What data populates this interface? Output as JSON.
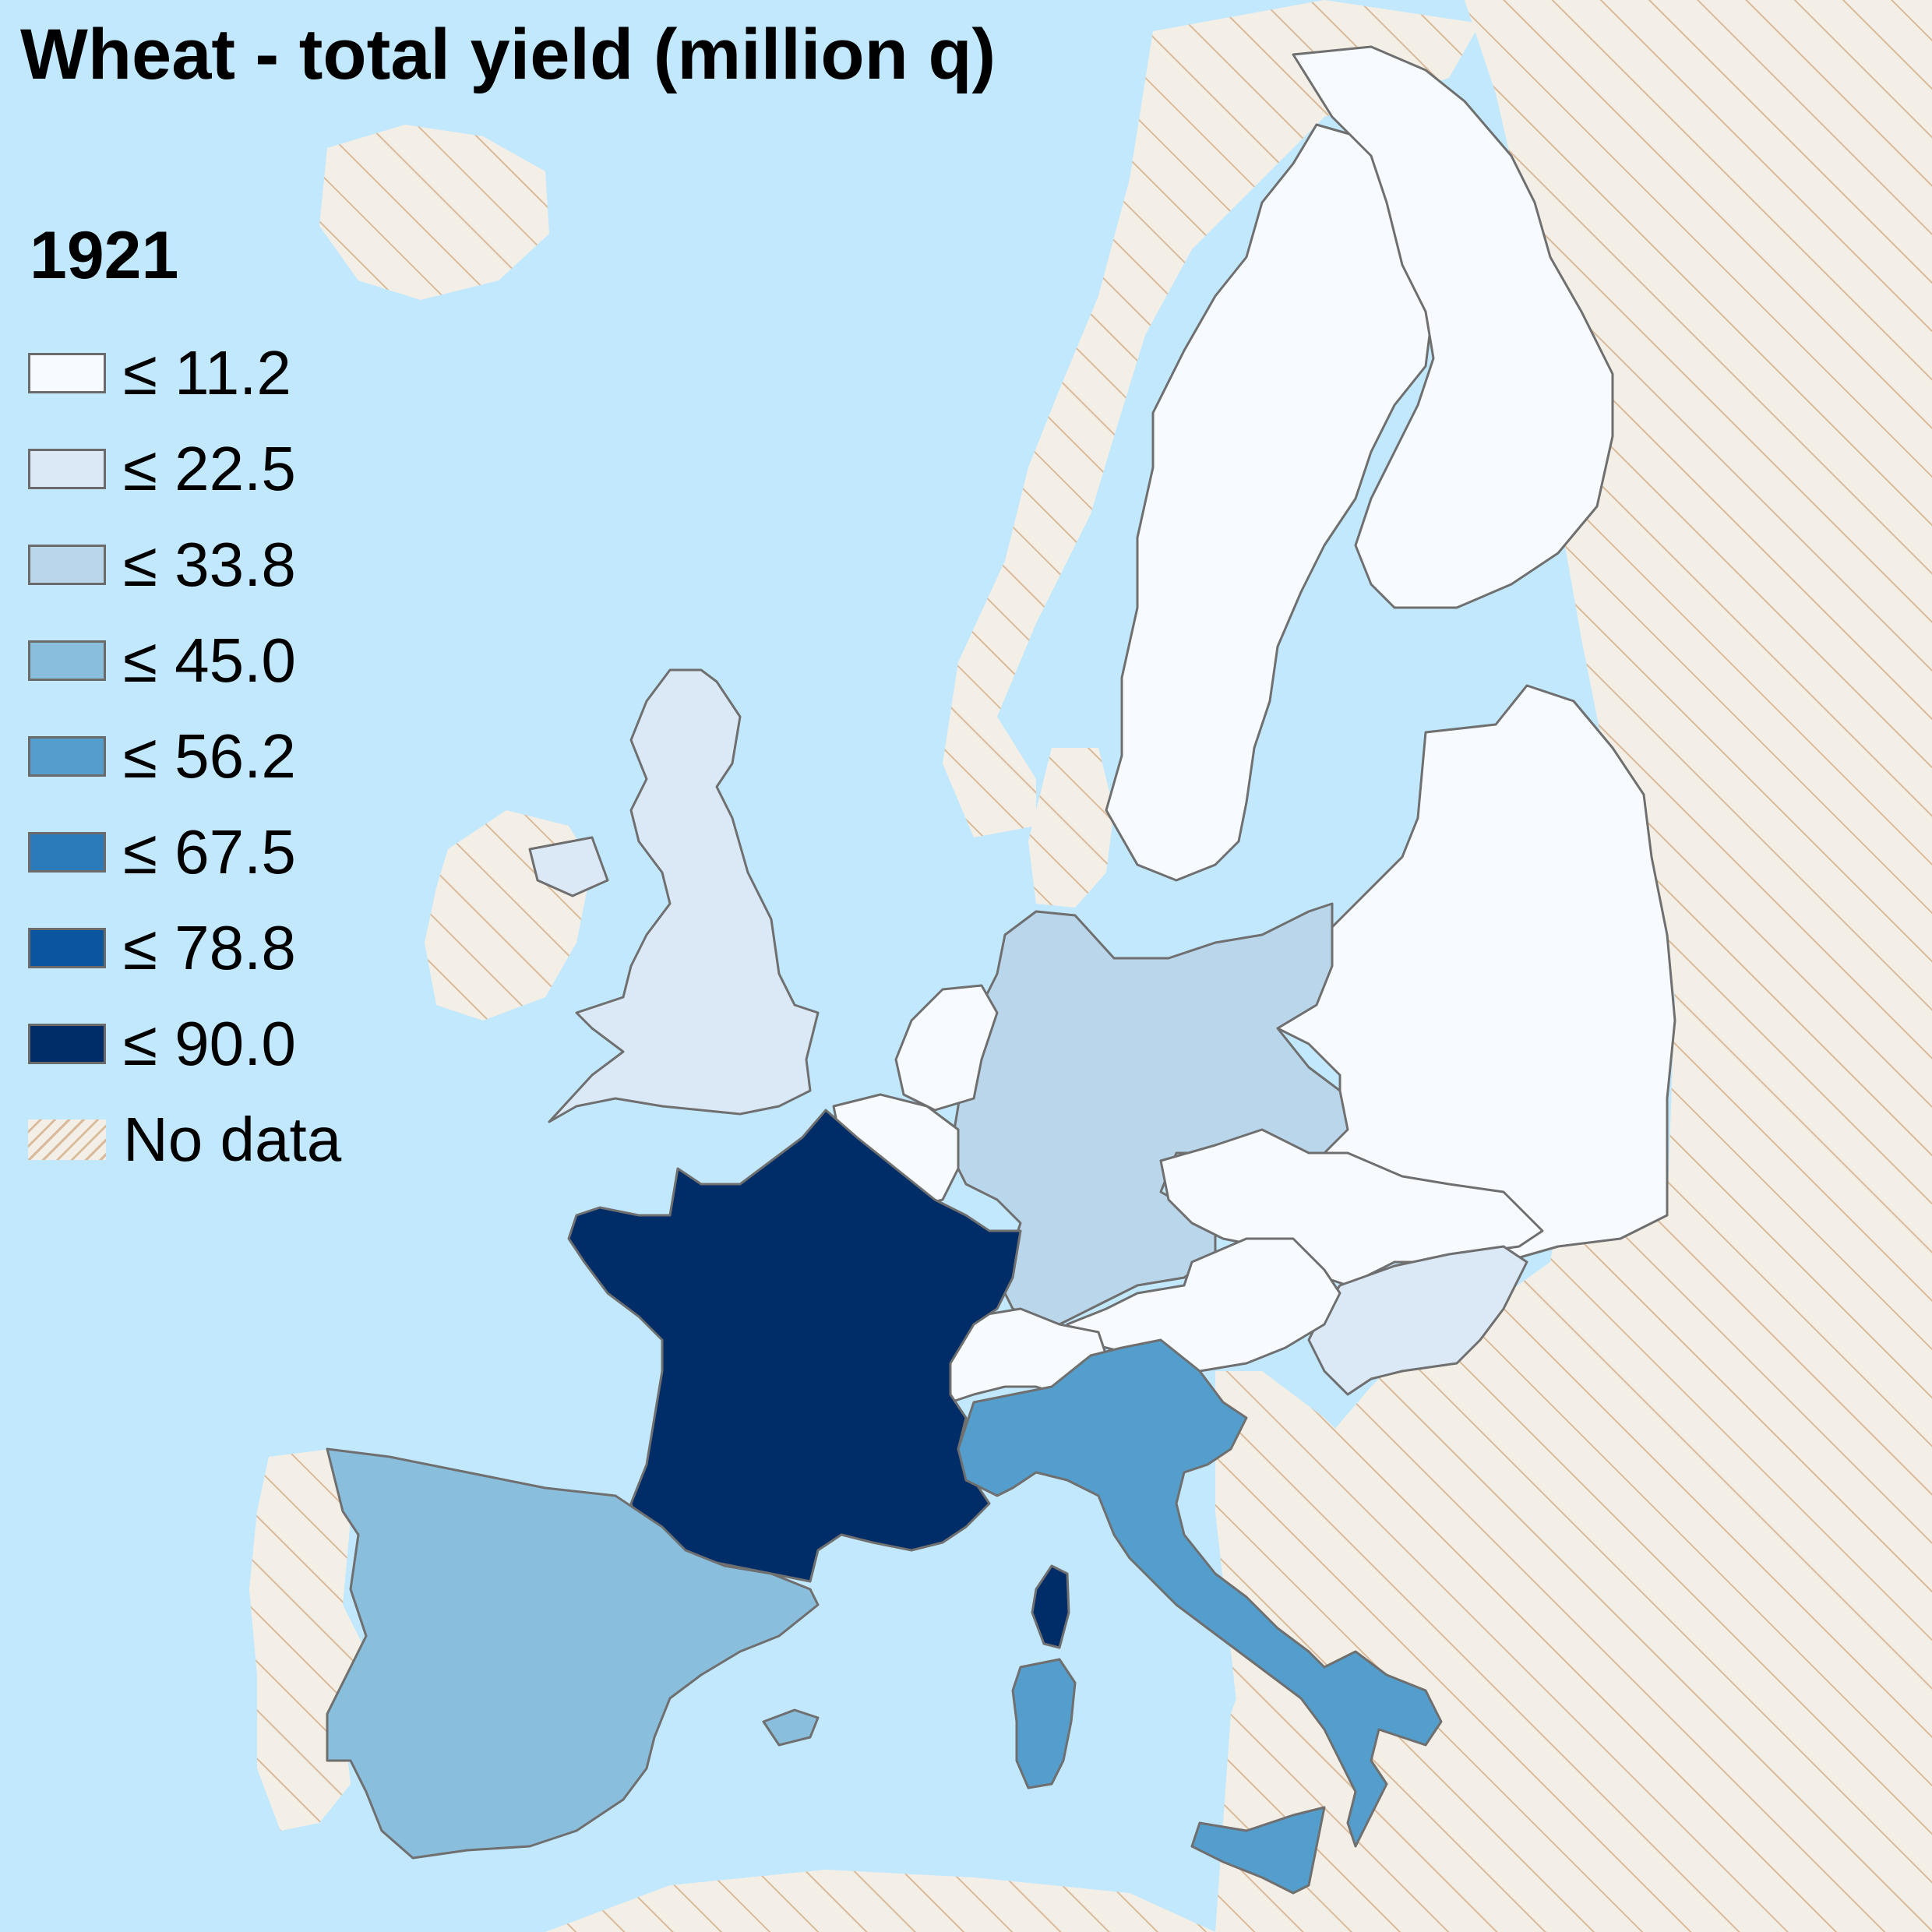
{
  "title": "Wheat - total yield (million q)",
  "legend": {
    "year": "1921",
    "items": [
      {
        "label": "≤ 11.2",
        "color": "#f7fbff"
      },
      {
        "label": "≤ 22.5",
        "color": "#dbe9f6"
      },
      {
        "label": "≤ 33.8",
        "color": "#bad6eb"
      },
      {
        "label": "≤ 45.0",
        "color": "#89bedc"
      },
      {
        "label": "≤ 56.2",
        "color": "#539ecd"
      },
      {
        "label": "≤ 67.5",
        "color": "#2b7bba"
      },
      {
        "label": "≤ 78.8",
        "color": "#0b559f"
      },
      {
        "label": "≤ 90.0",
        "color": "#002d67"
      }
    ],
    "no_data_label": "No data"
  },
  "colors": {
    "sea": "#c2e8fd",
    "no_data_land": "#f4efe6",
    "no_data_hatch": "#d9bb9c",
    "border": "#6f6f6f"
  }
}
